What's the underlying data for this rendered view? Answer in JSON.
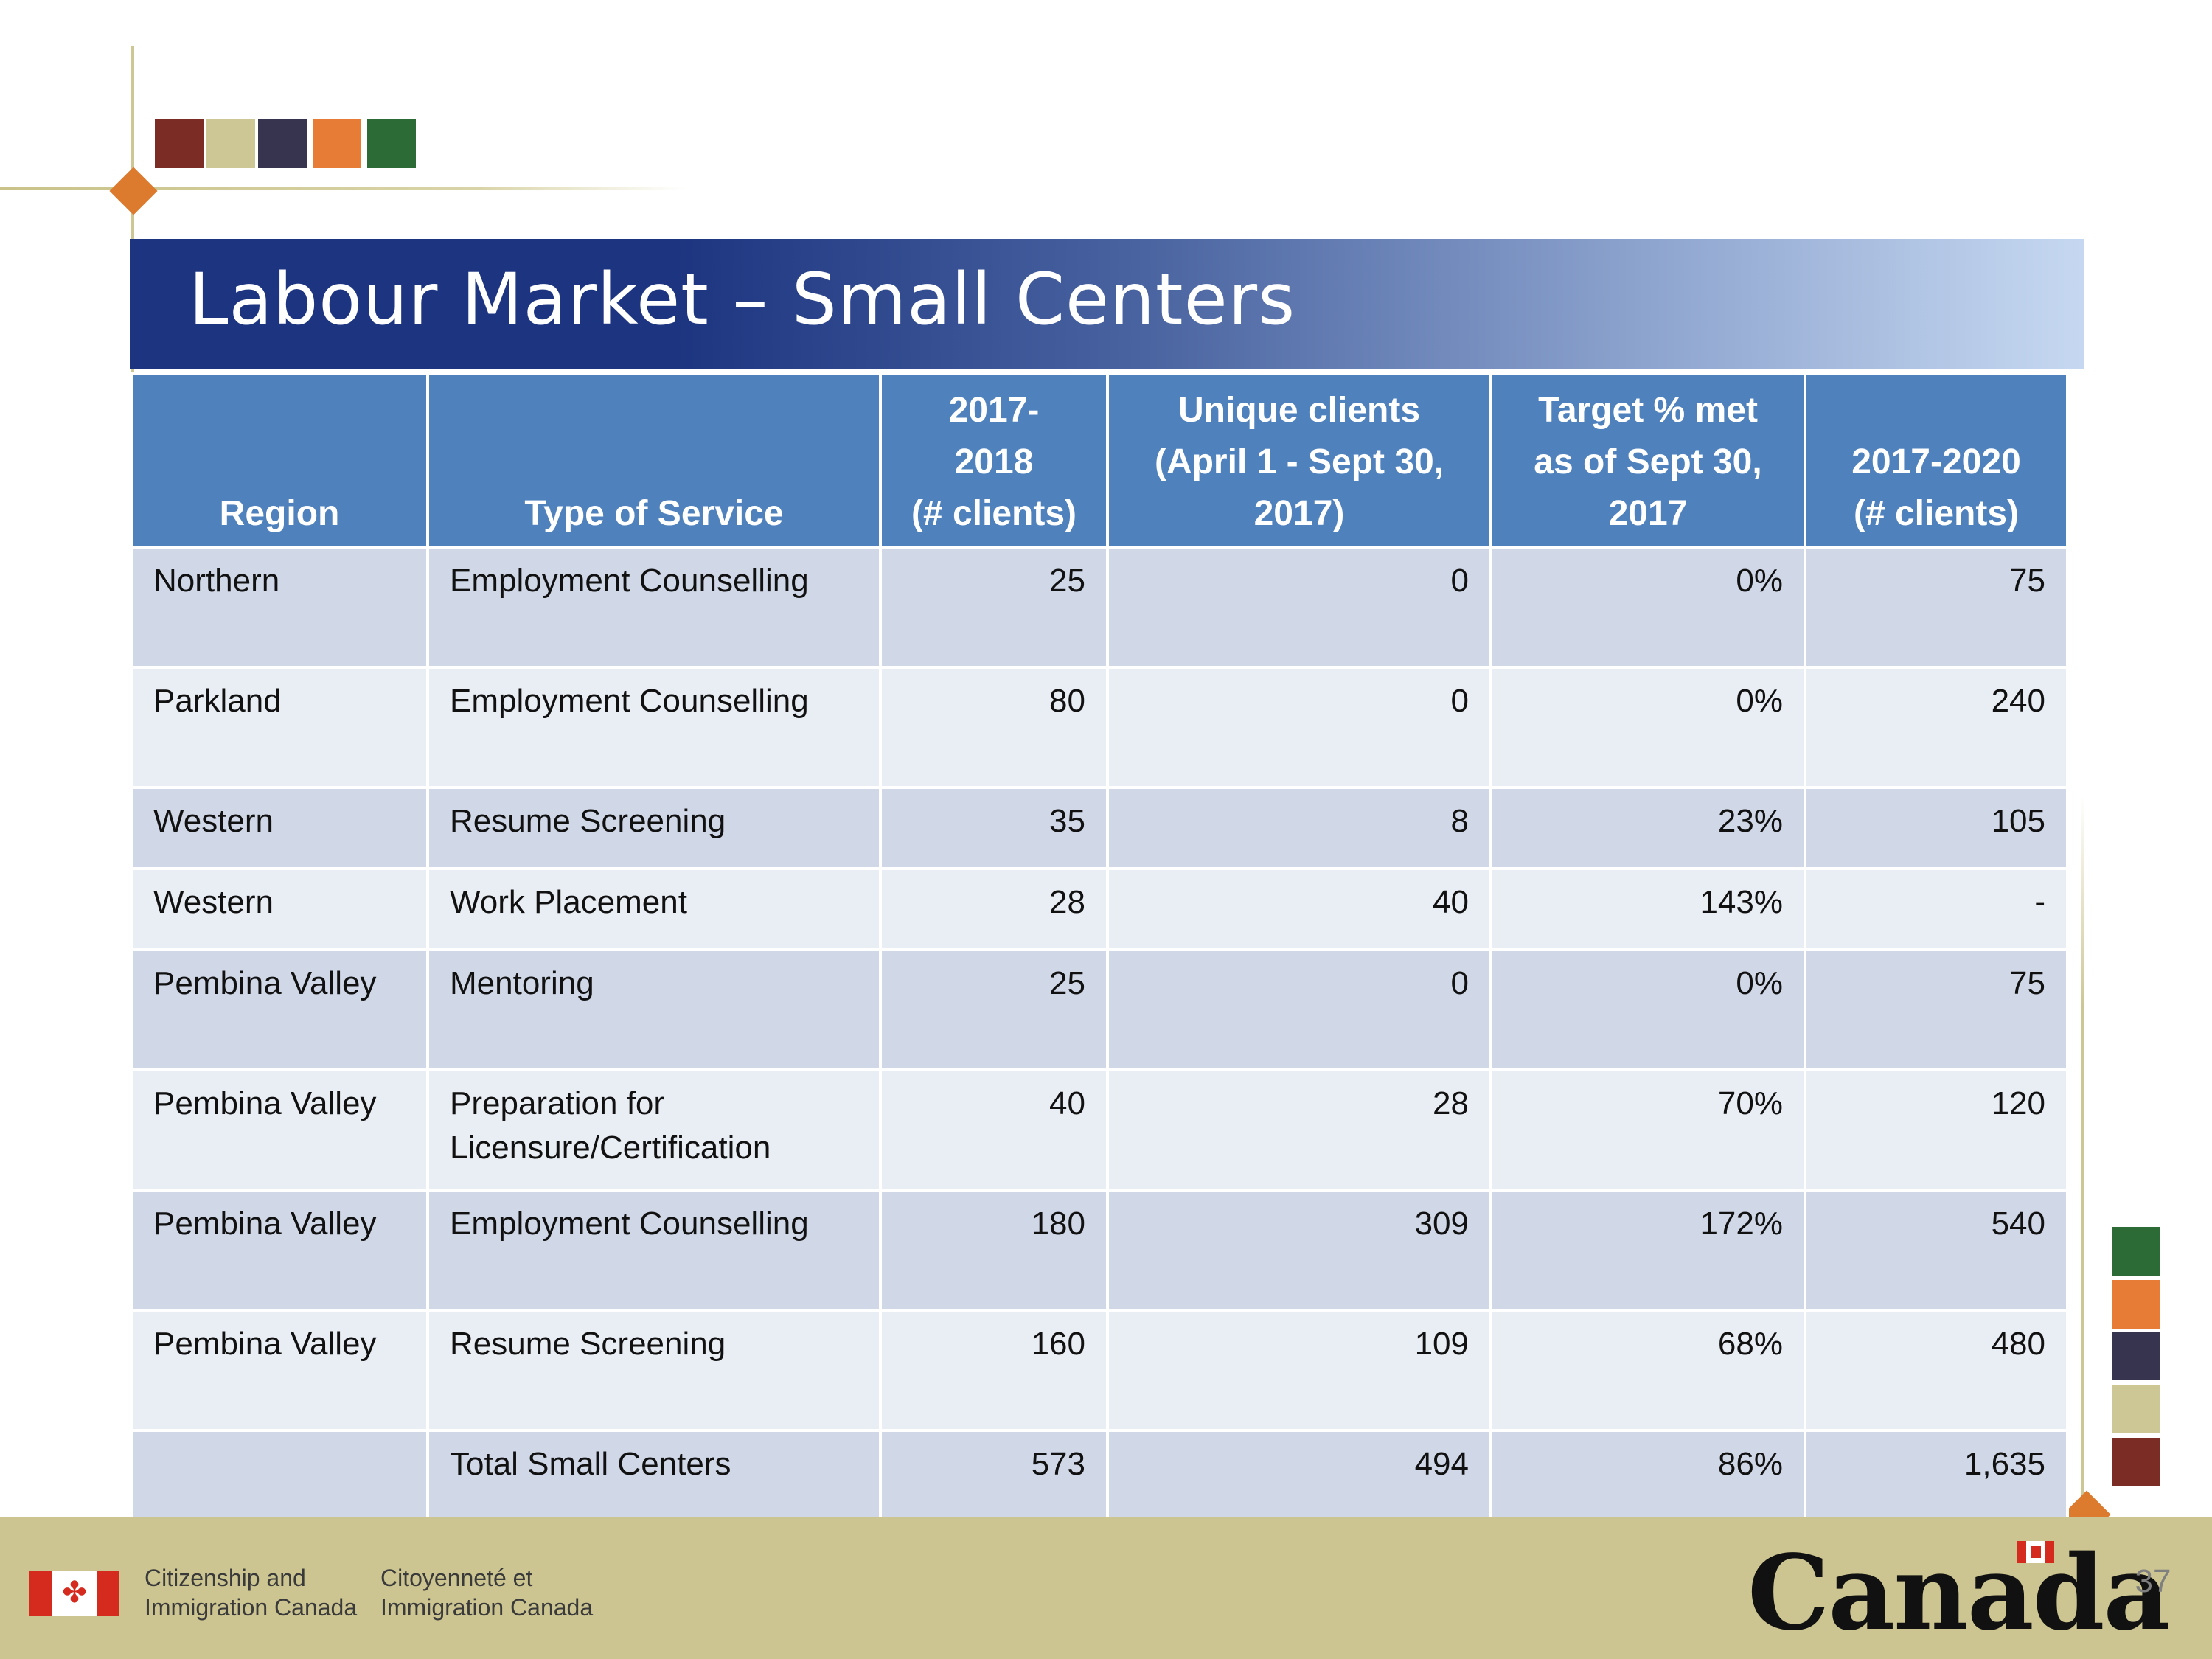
{
  "slide": {
    "title": "Labour Market – Small Centers",
    "page_number": "37"
  },
  "colors": {
    "title_bar_dark": "#1d3580",
    "title_bar_light": "#c6d8f1",
    "header_fill": "#4f81bd",
    "row_fill_odd": "#d0d8e8",
    "row_fill_even": "#e9edf4",
    "footer_band": "#ccc591",
    "accent_squares": [
      "#7b2c24",
      "#cdc796",
      "#36344f",
      "#e67c36",
      "#2d6b36"
    ]
  },
  "table": {
    "headers": {
      "region": "Region",
      "type_of_service": "Type of Service",
      "clients_2017_2018_line1": "2017-",
      "clients_2017_2018_line2": "2018",
      "clients_2017_2018_line3": "(# clients)",
      "unique_clients_line1": "Unique clients",
      "unique_clients_line2": "(April 1 - Sept 30,",
      "unique_clients_line3": "2017)",
      "target_met_line1": "Target % met",
      "target_met_line2": "as of Sept 30,",
      "target_met_line3": "2017",
      "clients_2017_2020_line1": "2017-2020",
      "clients_2017_2020_line2": "(# clients)"
    },
    "rows": [
      {
        "region": "Northern",
        "service_line1": "Employment Counselling",
        "service_line2": "",
        "clients_2017_2018": "25",
        "unique_clients": "0",
        "target_met": "0%",
        "clients_2017_2020": "75"
      },
      {
        "region": "Parkland",
        "service_line1": "Employment Counselling",
        "service_line2": "",
        "clients_2017_2018": "80",
        "unique_clients": "0",
        "target_met": "0%",
        "clients_2017_2020": "240"
      },
      {
        "region": "Western",
        "service_line1": "Resume Screening",
        "service_line2": "",
        "clients_2017_2018": "35",
        "unique_clients": "8",
        "target_met": "23%",
        "clients_2017_2020": "105"
      },
      {
        "region": "Western",
        "service_line1": "Work Placement",
        "service_line2": "",
        "clients_2017_2018": "28",
        "unique_clients": "40",
        "target_met": "143%",
        "clients_2017_2020": "-"
      },
      {
        "region": "Pembina Valley",
        "service_line1": "Mentoring",
        "service_line2": "",
        "clients_2017_2018": "25",
        "unique_clients": "0",
        "target_met": "0%",
        "clients_2017_2020": "75"
      },
      {
        "region": "Pembina Valley",
        "service_line1": "Preparation for",
        "service_line2": "Licensure/Certification",
        "clients_2017_2018": "40",
        "unique_clients": "28",
        "target_met": "70%",
        "clients_2017_2020": "120"
      },
      {
        "region": "Pembina Valley",
        "service_line1": "Employment Counselling",
        "service_line2": "",
        "clients_2017_2018": "180",
        "unique_clients": "309",
        "target_met": "172%",
        "clients_2017_2020": "540"
      },
      {
        "region": "Pembina Valley",
        "service_line1": "Resume Screening",
        "service_line2": "",
        "clients_2017_2018": "160",
        "unique_clients": "109",
        "target_met": "68%",
        "clients_2017_2020": "480"
      },
      {
        "region": "",
        "service_line1": "Total Small Centers",
        "service_line2": "",
        "clients_2017_2018": "573",
        "unique_clients": "494",
        "target_met": "86%",
        "clients_2017_2020": "1,635"
      }
    ]
  },
  "footer": {
    "dept_en_line1": "Citizenship and",
    "dept_en_line2": "Immigration Canada",
    "dept_fr_line1": "Citoyenneté et",
    "dept_fr_line2": "Immigration Canada",
    "wordmark": "Canada",
    "flag_icon": "canada-flag-icon",
    "leaf_glyph": "✤"
  }
}
